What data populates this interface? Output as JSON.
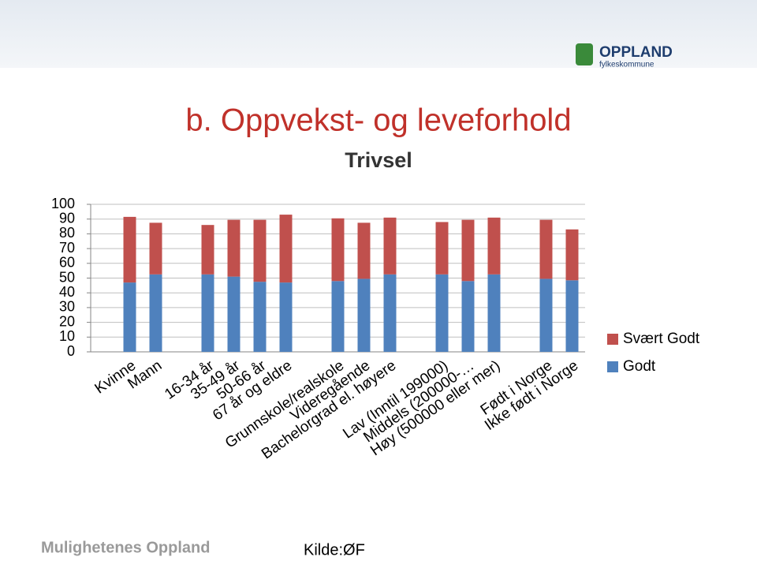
{
  "header": {
    "logo_name": "OPPLAND",
    "logo_sub": "fylkeskommune",
    "title": "b. Oppvekst- og leveforhold"
  },
  "chart_data": {
    "type": "stacked-bar",
    "title": "Trivsel",
    "categories": [
      null,
      "Kvinne",
      "Mann",
      null,
      "16-34 år",
      "35-49 år",
      "50-66 år",
      "67 år og eldre",
      null,
      "Grunnskole/realskole",
      "Videregående",
      "Bachelorgrad el. høyere",
      null,
      "Lav (Inntil 199000)",
      "Middels (200000-…",
      "Høy (500000 eller mer)",
      null,
      "Født i Norge",
      "Ikke født i Norge"
    ],
    "series": [
      {
        "name": "Godt",
        "color": "#4f81bd",
        "values": [
          null,
          47,
          52.5,
          null,
          52.5,
          51,
          47.5,
          47,
          null,
          48,
          49.5,
          52.5,
          null,
          52.5,
          48,
          52.5,
          null,
          49.5,
          48.5
        ]
      },
      {
        "name": "Svært Godt",
        "color": "#c0504d",
        "values": [
          null,
          44.5,
          35,
          null,
          33.5,
          38.5,
          42,
          46,
          null,
          42.5,
          38,
          38.5,
          null,
          35.5,
          41.5,
          38.5,
          null,
          40,
          34.5
        ]
      }
    ],
    "ylim": [
      0,
      100
    ],
    "yticks": [
      0,
      10,
      20,
      30,
      40,
      50,
      60,
      70,
      80,
      90,
      100
    ],
    "grid": true,
    "legend": "right"
  },
  "footer": {
    "left": "Mulighetenes Oppland",
    "source": "Kilde:ØF"
  }
}
